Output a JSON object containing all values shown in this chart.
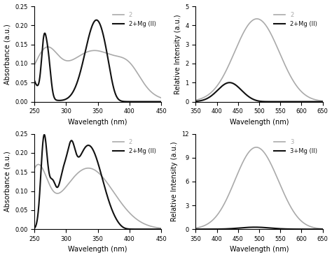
{
  "fig_width": 4.74,
  "fig_height": 3.68,
  "dpi": 100,
  "ax1": {
    "xlabel": "Wavelength (nm)",
    "ylabel": "Absorbance (a.u.)",
    "xlim": [
      250,
      450
    ],
    "ylim": [
      0,
      0.25
    ],
    "yticks": [
      0,
      0.05,
      0.1,
      0.15,
      0.2,
      0.25
    ],
    "legend": [
      "2",
      "2+Mg (II)"
    ],
    "gray": "#aaaaaa",
    "black": "#111111"
  },
  "ax2": {
    "xlabel": "Wavelength (nm)",
    "ylabel": "Relative Intensity (a.u.)",
    "xlim": [
      350,
      650
    ],
    "ylim": [
      0,
      5
    ],
    "yticks": [
      0,
      1,
      2,
      3,
      4,
      5
    ],
    "legend": [
      "2",
      "2+Mg (II)"
    ],
    "gray": "#aaaaaa",
    "black": "#111111"
  },
  "ax3": {
    "xlabel": "Wavelength (nm)",
    "ylabel": "Absorbance (a.u.)",
    "xlim": [
      250,
      450
    ],
    "ylim": [
      0,
      0.25
    ],
    "yticks": [
      0,
      0.05,
      0.1,
      0.15,
      0.2,
      0.25
    ],
    "legend": [
      "2",
      "2+Mg (II)"
    ],
    "gray": "#aaaaaa",
    "black": "#111111"
  },
  "ax4": {
    "xlabel": "Wavelength (nm)",
    "ylabel": "Relative Intensity (a.u.)",
    "xlim": [
      350,
      650
    ],
    "ylim": [
      0,
      12
    ],
    "yticks": [
      0,
      3,
      6,
      9,
      12
    ],
    "legend": [
      "3",
      "3+Mg (II)"
    ],
    "gray": "#aaaaaa",
    "black": "#111111"
  }
}
